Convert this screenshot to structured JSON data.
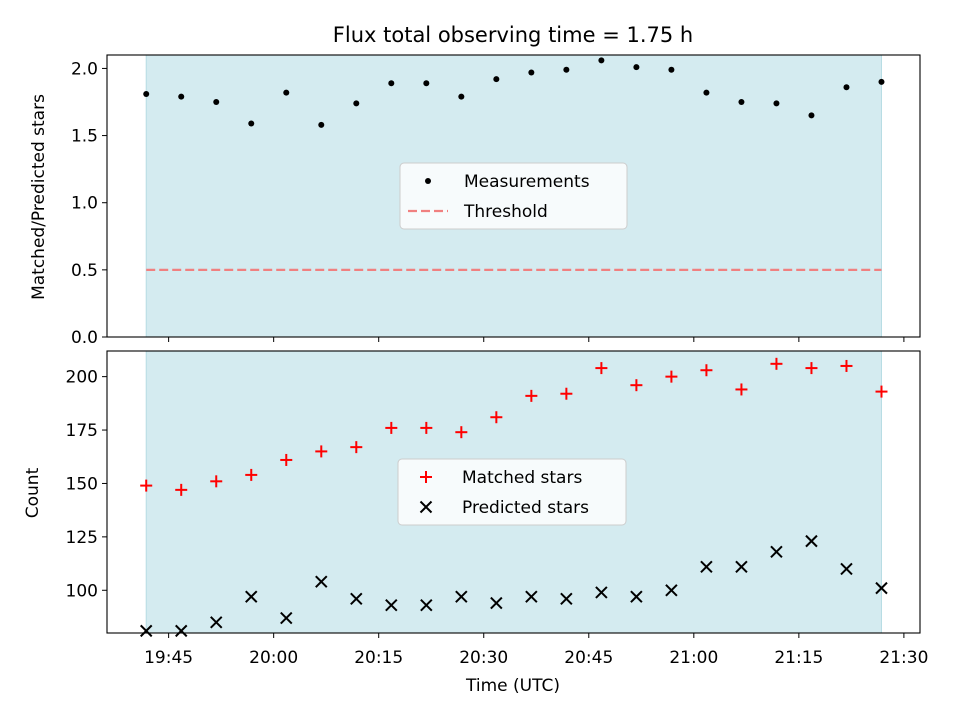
{
  "chart_data": {
    "type": "scatter",
    "title": "Flux total observing time = 1.75 h",
    "xlabel": "Time (UTC)",
    "x_tick_labels": [
      "19:45",
      "20:00",
      "20:15",
      "20:30",
      "20:45",
      "21:00",
      "21:15",
      "21:30"
    ],
    "x_tick_minutes": [
      1185,
      1200,
      1215,
      1230,
      1245,
      1260,
      1275,
      1290
    ],
    "xlim_minutes": [
      1176.2,
      1292.3
    ],
    "x_minutes": [
      1181.8,
      1186.8,
      1191.8,
      1196.8,
      1201.8,
      1206.8,
      1211.8,
      1216.8,
      1221.8,
      1226.8,
      1231.8,
      1236.8,
      1241.8,
      1246.8,
      1251.8,
      1256.8,
      1261.8,
      1266.8,
      1271.8,
      1276.8,
      1281.8,
      1286.8
    ],
    "observing_window_minutes": [
      1181.8,
      1286.8
    ],
    "observing_window_color": "#d4ebf0",
    "panels": [
      {
        "ylabel": "Matched/Predicted stars",
        "ylim": [
          0,
          2.1
        ],
        "yticks": [
          0.0,
          0.5,
          1.0,
          1.5,
          2.0
        ],
        "ytick_labels": [
          "0.0",
          "0.5",
          "1.0",
          "1.5",
          "2.0"
        ],
        "series": [
          {
            "name": "Measurements",
            "marker": "dot",
            "color": "#000000",
            "values": [
              1.81,
              1.79,
              1.75,
              1.59,
              1.82,
              1.58,
              1.74,
              1.89,
              1.89,
              1.79,
              1.92,
              1.97,
              1.99,
              2.06,
              2.01,
              1.99,
              1.82,
              1.75,
              1.74,
              1.65,
              1.86,
              1.9
            ]
          }
        ],
        "threshold": {
          "name": "Threshold",
          "value": 0.5,
          "color": "#f08080",
          "style": "dashed"
        },
        "legend": {
          "entries": [
            "Measurements",
            "Threshold"
          ],
          "location": "center"
        }
      },
      {
        "ylabel": "Count",
        "ylim": [
          80,
          212
        ],
        "yticks": [
          100,
          125,
          150,
          175,
          200
        ],
        "ytick_labels": [
          "100",
          "125",
          "150",
          "175",
          "200"
        ],
        "series": [
          {
            "name": "Matched stars",
            "marker": "plus",
            "color": "#ff0000",
            "values": [
              149,
              147,
              151,
              154,
              161,
              165,
              167,
              176,
              176,
              174,
              181,
              191,
              192,
              204,
              196,
              200,
              203,
              194,
              206,
              204,
              205,
              193
            ]
          },
          {
            "name": "Predicted stars",
            "marker": "x",
            "color": "#000000",
            "values": [
              81,
              81,
              85,
              97,
              87,
              104,
              96,
              93,
              93,
              97,
              94,
              97,
              96,
              99,
              97,
              100,
              111,
              111,
              118,
              123,
              110,
              101
            ]
          }
        ],
        "legend": {
          "entries": [
            "Matched stars",
            "Predicted stars"
          ],
          "location": "center"
        }
      }
    ]
  }
}
